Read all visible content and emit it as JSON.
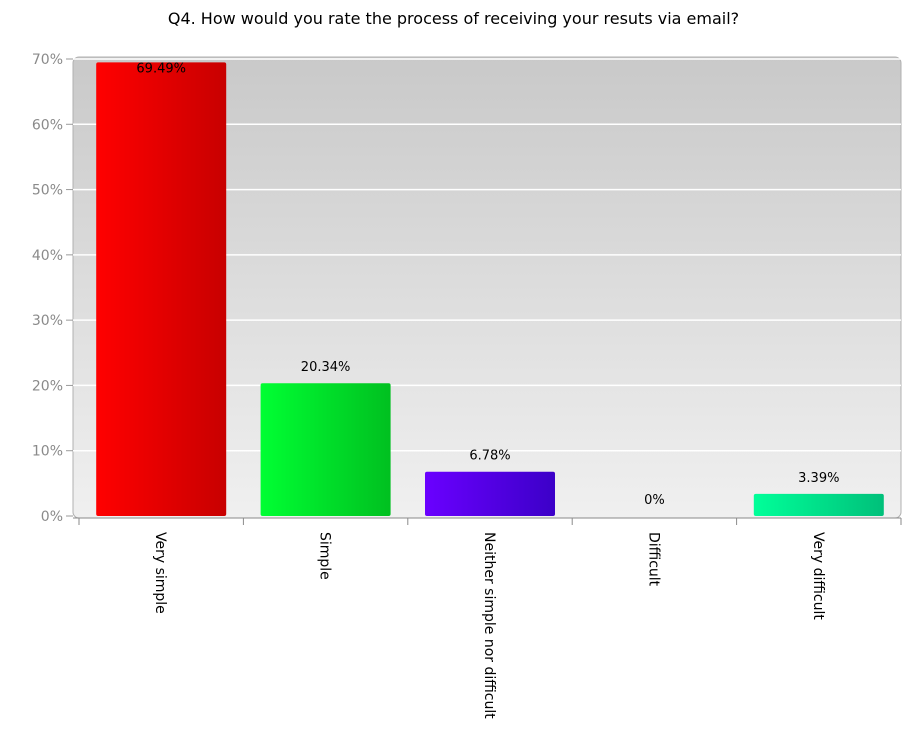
{
  "chart_data": {
    "type": "bar",
    "title": "Q4. How would you rate the process of receiving your resuts via email?",
    "categories": [
      "Very simple",
      "Simple",
      "Neither simple nor difficult",
      "Difficult",
      "Very difficult"
    ],
    "values": [
      69.49,
      20.34,
      6.78,
      0,
      3.39
    ],
    "data_labels": [
      "69.49%",
      "20.34%",
      "6.78%",
      "0%",
      "3.39%"
    ],
    "yticks": [
      "0%",
      "10%",
      "20%",
      "30%",
      "40%",
      "50%",
      "60%",
      "70%"
    ],
    "ylim": [
      0,
      70
    ],
    "grid": true,
    "colors": [
      [
        "#ff0000",
        "#c80000"
      ],
      [
        "#00ff33",
        "#00c020"
      ],
      [
        "#6a00ff",
        "#3c00c8"
      ],
      [
        "#888888",
        "#666666"
      ],
      [
        "#00ff99",
        "#00c07a"
      ]
    ]
  }
}
